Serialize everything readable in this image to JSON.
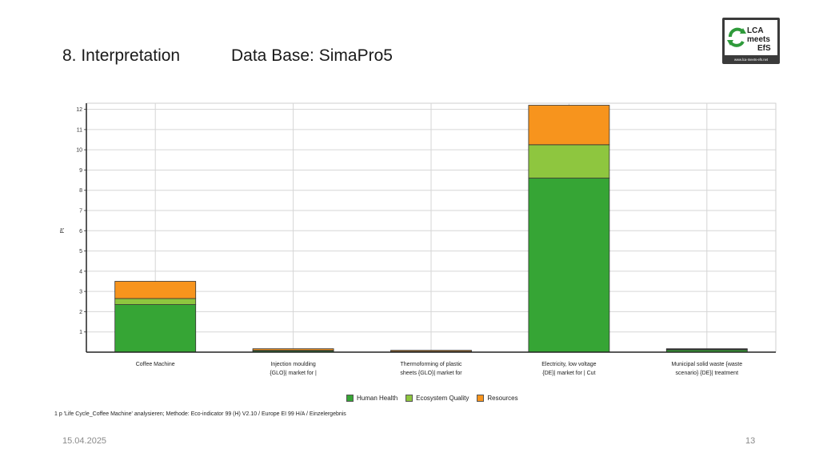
{
  "slide": {
    "title": "8. Interpretation",
    "subtitle": "Data Base: SimaPro5",
    "date": "15.04.2025",
    "page_number": "13"
  },
  "logo": {
    "line1": "LCA",
    "line2": "meets",
    "line3": "EfS",
    "url": "www.lca-meets-efs.net"
  },
  "footnote": "1 p 'Life Cycle_Coffee Machine' analysieren; Methode: Eco-indicator 99 (H) V2.10 / Europe EI 99 H/A / Einzelergebnis",
  "chart_data": {
    "type": "bar",
    "stacked": true,
    "ylabel": "Pt",
    "ylim": [
      0,
      12.3
    ],
    "yticks": [
      1,
      2,
      3,
      4,
      5,
      6,
      7,
      8,
      9,
      10,
      11,
      12
    ],
    "grid": true,
    "legend_position": "bottom-center",
    "categories": [
      [
        "Coffee Machine"
      ],
      [
        "Injection moulding",
        "{GLO}| market for |"
      ],
      [
        "Thermoforming of plastic",
        "sheets {GLO}| market for"
      ],
      [
        "Electricity, low voltage",
        "{DE}| market for | Cut"
      ],
      [
        "Municipal solid waste {waste",
        "scenario} {DE}| treatment"
      ]
    ],
    "series": [
      {
        "name": "Human Health",
        "color": "#36a535",
        "values": [
          2.35,
          0.07,
          0.03,
          8.6,
          0.11
        ]
      },
      {
        "name": "Ecosystem Quality",
        "color": "#8ec63f",
        "values": [
          0.3,
          0.02,
          0.01,
          1.65,
          0.03
        ]
      },
      {
        "name": "Resources",
        "color": "#f7941d",
        "values": [
          0.85,
          0.08,
          0.05,
          1.95,
          0.03
        ]
      }
    ]
  }
}
